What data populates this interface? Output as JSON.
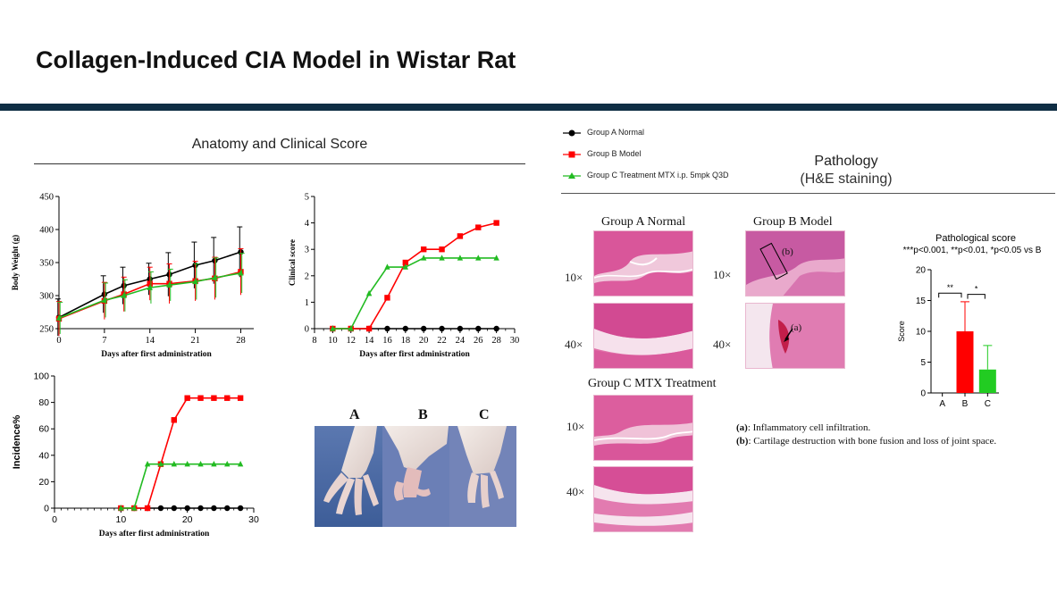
{
  "slide": {
    "title": "Collagen-Induced CIA Model in Wistar Rat"
  },
  "left_section": {
    "title": "Anatomy and Clinical Score"
  },
  "right_section": {
    "title": "Pathology",
    "subtitle": "(H&E staining)"
  },
  "legend": {
    "items": [
      {
        "label": "Group A Normal",
        "color": "#000000",
        "marker": "circle"
      },
      {
        "label": "Group B Model",
        "color": "#ff0000",
        "marker": "square"
      },
      {
        "label": "Group C Treatment MTX i.p. 5mpk Q3D",
        "color": "#22bb22",
        "marker": "triangle"
      }
    ]
  },
  "paw_photos": {
    "labels": [
      "A",
      "B",
      "C"
    ]
  },
  "histology": {
    "groups": [
      "Group A Normal",
      "Group B Model",
      "Group C MTX Treatment"
    ],
    "magnifications": [
      "10×",
      "40×"
    ],
    "annotations": [
      "(a)",
      "(b)"
    ]
  },
  "notes": [
    {
      "key": "(a)",
      "text": ": Inflammatory cell infiltration."
    },
    {
      "key": "(b)",
      "text": ": Cartilage destruction with bone fusion and loss of joint space."
    }
  ],
  "chart_data": [
    {
      "id": "body_weight",
      "type": "line",
      "xlabel": "Days after first administration",
      "ylabel": "Body Weight (g)",
      "xlim": [
        0,
        30
      ],
      "ylim": [
        250,
        450
      ],
      "xticks": [
        0,
        7,
        14,
        21,
        28
      ],
      "yticks": [
        250,
        300,
        350,
        400,
        450
      ],
      "x": [
        0,
        7,
        10,
        14,
        17,
        21,
        24,
        28
      ],
      "series": [
        {
          "name": "Group A Normal",
          "color": "#000000",
          "marker": "circle",
          "values": [
            267,
            302,
            315,
            325,
            332,
            346,
            353,
            366
          ],
          "errors": [
            28,
            28,
            28,
            24,
            33,
            35,
            35,
            38
          ]
        },
        {
          "name": "Group B Model",
          "color": "#ff0000",
          "marker": "square",
          "values": [
            265,
            292,
            302,
            318,
            318,
            322,
            326,
            336
          ],
          "errors": [
            26,
            28,
            26,
            25,
            30,
            30,
            32,
            35
          ]
        },
        {
          "name": "Group C Treatment MTX i.p. 5mpk Q3D",
          "color": "#22bb22",
          "marker": "triangle",
          "values": [
            266,
            293,
            300,
            312,
            316,
            321,
            327,
            334
          ],
          "errors": [
            24,
            26,
            24,
            24,
            24,
            27,
            30,
            30
          ]
        }
      ]
    },
    {
      "id": "clinical_score",
      "type": "line",
      "xlabel": "Days after first administration",
      "ylabel": "Clinical score",
      "xlim": [
        8,
        30
      ],
      "ylim": [
        0,
        5
      ],
      "xticks": [
        8,
        10,
        12,
        14,
        16,
        18,
        20,
        22,
        24,
        26,
        28,
        30
      ],
      "yticks": [
        0,
        1,
        2,
        3,
        4,
        5
      ],
      "x": [
        10,
        12,
        14,
        16,
        18,
        20,
        22,
        24,
        26,
        28
      ],
      "series": [
        {
          "name": "Group A Normal",
          "color": "#000000",
          "marker": "circle",
          "values": [
            0,
            0,
            0,
            0,
            0,
            0,
            0,
            0,
            0,
            0
          ]
        },
        {
          "name": "Group B Model",
          "color": "#ff0000",
          "marker": "square",
          "values": [
            0,
            0,
            0,
            1.17,
            2.5,
            3.0,
            3.0,
            3.5,
            3.83,
            4.0
          ]
        },
        {
          "name": "Group C Treatment MTX i.p. 5mpk Q3D",
          "color": "#22bb22",
          "marker": "triangle",
          "values": [
            0,
            0,
            1.33,
            2.33,
            2.33,
            2.67,
            2.67,
            2.67,
            2.67,
            2.67
          ]
        }
      ]
    },
    {
      "id": "incidence",
      "type": "line",
      "xlabel": "Days after first administration",
      "ylabel": "Incidence%",
      "xlim": [
        0,
        30
      ],
      "ylim": [
        0,
        100
      ],
      "xticks": [
        0,
        10,
        20,
        30
      ],
      "yticks": [
        0,
        20,
        40,
        60,
        80,
        100
      ],
      "x": [
        10,
        12,
        14,
        16,
        18,
        20,
        22,
        24,
        26,
        28
      ],
      "series": [
        {
          "name": "Group A Normal",
          "color": "#000000",
          "marker": "circle",
          "values": [
            0,
            0,
            0,
            0,
            0,
            0,
            0,
            0,
            0,
            0
          ]
        },
        {
          "name": "Group B Model",
          "color": "#ff0000",
          "marker": "square",
          "values": [
            0,
            0,
            0,
            33.3,
            66.7,
            83.3,
            83.3,
            83.3,
            83.3,
            83.3
          ]
        },
        {
          "name": "Group C Treatment MTX i.p. 5mpk Q3D",
          "color": "#22bb22",
          "marker": "triangle",
          "values": [
            0,
            0,
            33.3,
            33.3,
            33.3,
            33.3,
            33.3,
            33.3,
            33.3,
            33.3
          ]
        }
      ]
    },
    {
      "id": "pathological_score",
      "type": "bar",
      "title": "Pathological score",
      "subtitle": "***p<0.001, **p<0.01, *p<0.05 vs B",
      "ylabel": "Score",
      "ylim": [
        0,
        20
      ],
      "yticks": [
        0,
        5,
        10,
        15,
        20
      ],
      "categories": [
        "A",
        "B",
        "C"
      ],
      "values": [
        0,
        10,
        3.8
      ],
      "errors": [
        0,
        4.8,
        3.9
      ],
      "colors": [
        "#000000",
        "#ff0000",
        "#22cc22"
      ],
      "significance": [
        {
          "from": "A",
          "to": "B",
          "label": "**"
        },
        {
          "from": "B",
          "to": "C",
          "label": "*"
        }
      ]
    }
  ]
}
